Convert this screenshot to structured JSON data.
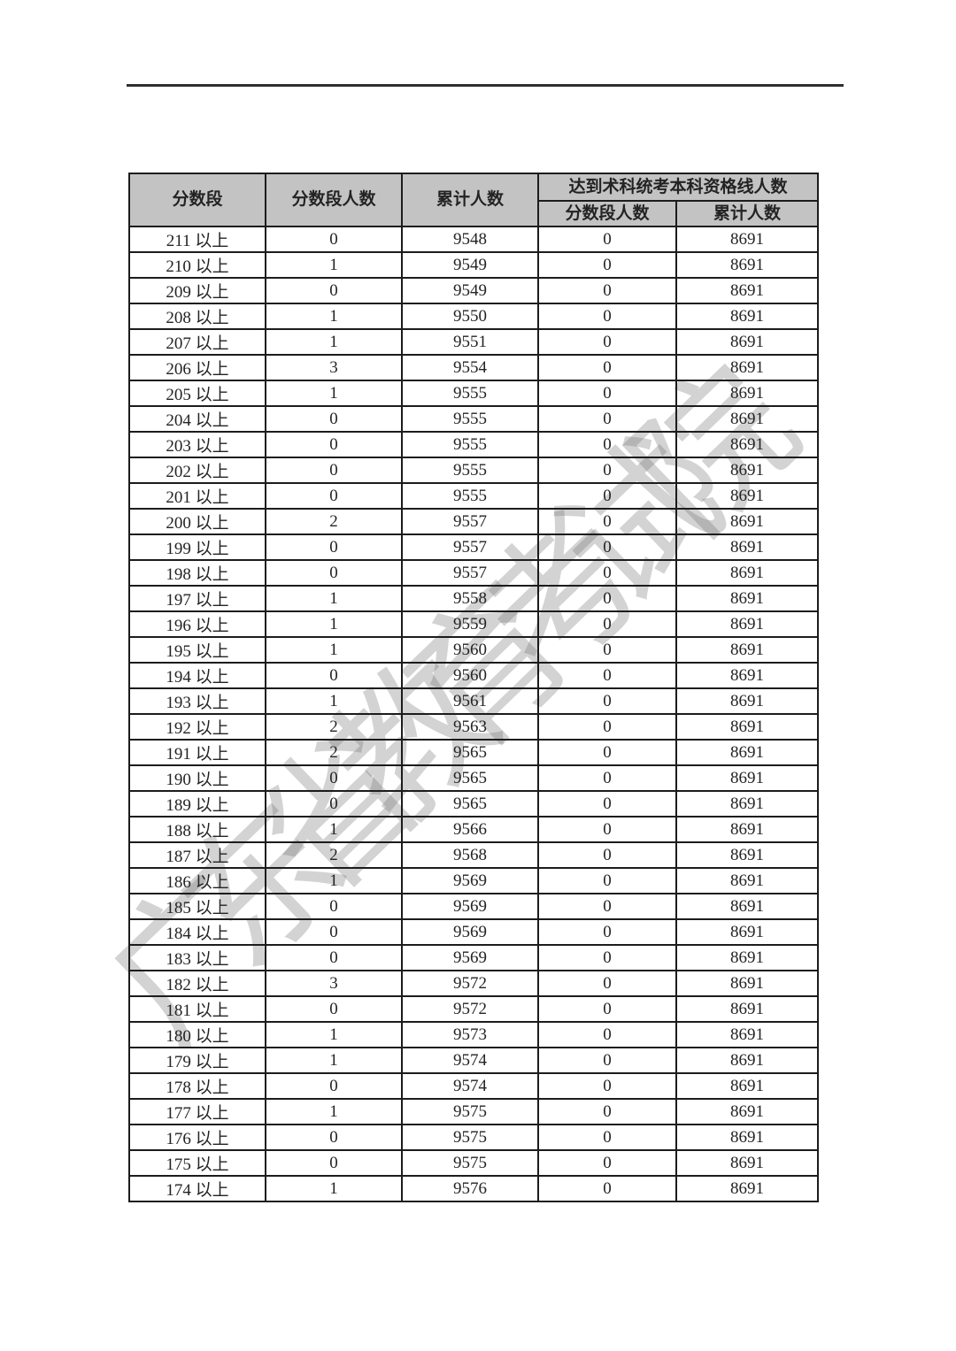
{
  "document": {
    "watermark_text": "广东省教育考试院"
  },
  "table": {
    "headers": {
      "score_range": "分数段",
      "range_count": "分数段人数",
      "cumulative_count": "累计人数",
      "qualified_group": "达到术科统考本科资格线人数",
      "qualified_range_count": "分数段人数",
      "qualified_cumulative_count": "累计人数"
    },
    "rows": [
      {
        "score": "211 以上",
        "seg": "0",
        "cum": "9548",
        "q_seg": "0",
        "q_cum": "8691"
      },
      {
        "score": "210 以上",
        "seg": "1",
        "cum": "9549",
        "q_seg": "0",
        "q_cum": "8691"
      },
      {
        "score": "209 以上",
        "seg": "0",
        "cum": "9549",
        "q_seg": "0",
        "q_cum": "8691"
      },
      {
        "score": "208 以上",
        "seg": "1",
        "cum": "9550",
        "q_seg": "0",
        "q_cum": "8691"
      },
      {
        "score": "207 以上",
        "seg": "1",
        "cum": "9551",
        "q_seg": "0",
        "q_cum": "8691"
      },
      {
        "score": "206 以上",
        "seg": "3",
        "cum": "9554",
        "q_seg": "0",
        "q_cum": "8691"
      },
      {
        "score": "205 以上",
        "seg": "1",
        "cum": "9555",
        "q_seg": "0",
        "q_cum": "8691"
      },
      {
        "score": "204 以上",
        "seg": "0",
        "cum": "9555",
        "q_seg": "0",
        "q_cum": "8691"
      },
      {
        "score": "203 以上",
        "seg": "0",
        "cum": "9555",
        "q_seg": "0",
        "q_cum": "8691"
      },
      {
        "score": "202 以上",
        "seg": "0",
        "cum": "9555",
        "q_seg": "0",
        "q_cum": "8691"
      },
      {
        "score": "201 以上",
        "seg": "0",
        "cum": "9555",
        "q_seg": "0",
        "q_cum": "8691"
      },
      {
        "score": "200 以上",
        "seg": "2",
        "cum": "9557",
        "q_seg": "0",
        "q_cum": "8691"
      },
      {
        "score": "199 以上",
        "seg": "0",
        "cum": "9557",
        "q_seg": "0",
        "q_cum": "8691"
      },
      {
        "score": "198 以上",
        "seg": "0",
        "cum": "9557",
        "q_seg": "0",
        "q_cum": "8691"
      },
      {
        "score": "197 以上",
        "seg": "1",
        "cum": "9558",
        "q_seg": "0",
        "q_cum": "8691"
      },
      {
        "score": "196 以上",
        "seg": "1",
        "cum": "9559",
        "q_seg": "0",
        "q_cum": "8691"
      },
      {
        "score": "195 以上",
        "seg": "1",
        "cum": "9560",
        "q_seg": "0",
        "q_cum": "8691"
      },
      {
        "score": "194 以上",
        "seg": "0",
        "cum": "9560",
        "q_seg": "0",
        "q_cum": "8691"
      },
      {
        "score": "193 以上",
        "seg": "1",
        "cum": "9561",
        "q_seg": "0",
        "q_cum": "8691"
      },
      {
        "score": "192 以上",
        "seg": "2",
        "cum": "9563",
        "q_seg": "0",
        "q_cum": "8691"
      },
      {
        "score": "191 以上",
        "seg": "2",
        "cum": "9565",
        "q_seg": "0",
        "q_cum": "8691"
      },
      {
        "score": "190 以上",
        "seg": "0",
        "cum": "9565",
        "q_seg": "0",
        "q_cum": "8691"
      },
      {
        "score": "189 以上",
        "seg": "0",
        "cum": "9565",
        "q_seg": "0",
        "q_cum": "8691"
      },
      {
        "score": "188 以上",
        "seg": "1",
        "cum": "9566",
        "q_seg": "0",
        "q_cum": "8691"
      },
      {
        "score": "187 以上",
        "seg": "2",
        "cum": "9568",
        "q_seg": "0",
        "q_cum": "8691"
      },
      {
        "score": "186 以上",
        "seg": "1",
        "cum": "9569",
        "q_seg": "0",
        "q_cum": "8691"
      },
      {
        "score": "185 以上",
        "seg": "0",
        "cum": "9569",
        "q_seg": "0",
        "q_cum": "8691"
      },
      {
        "score": "184 以上",
        "seg": "0",
        "cum": "9569",
        "q_seg": "0",
        "q_cum": "8691"
      },
      {
        "score": "183 以上",
        "seg": "0",
        "cum": "9569",
        "q_seg": "0",
        "q_cum": "8691"
      },
      {
        "score": "182 以上",
        "seg": "3",
        "cum": "9572",
        "q_seg": "0",
        "q_cum": "8691"
      },
      {
        "score": "181 以上",
        "seg": "0",
        "cum": "9572",
        "q_seg": "0",
        "q_cum": "8691"
      },
      {
        "score": "180 以上",
        "seg": "1",
        "cum": "9573",
        "q_seg": "0",
        "q_cum": "8691"
      },
      {
        "score": "179 以上",
        "seg": "1",
        "cum": "9574",
        "q_seg": "0",
        "q_cum": "8691"
      },
      {
        "score": "178 以上",
        "seg": "0",
        "cum": "9574",
        "q_seg": "0",
        "q_cum": "8691"
      },
      {
        "score": "177 以上",
        "seg": "1",
        "cum": "9575",
        "q_seg": "0",
        "q_cum": "8691"
      },
      {
        "score": "176 以上",
        "seg": "0",
        "cum": "9575",
        "q_seg": "0",
        "q_cum": "8691"
      },
      {
        "score": "175 以上",
        "seg": "0",
        "cum": "9575",
        "q_seg": "0",
        "q_cum": "8691"
      },
      {
        "score": "174 以上",
        "seg": "1",
        "cum": "9576",
        "q_seg": "0",
        "q_cum": "8691"
      }
    ]
  }
}
